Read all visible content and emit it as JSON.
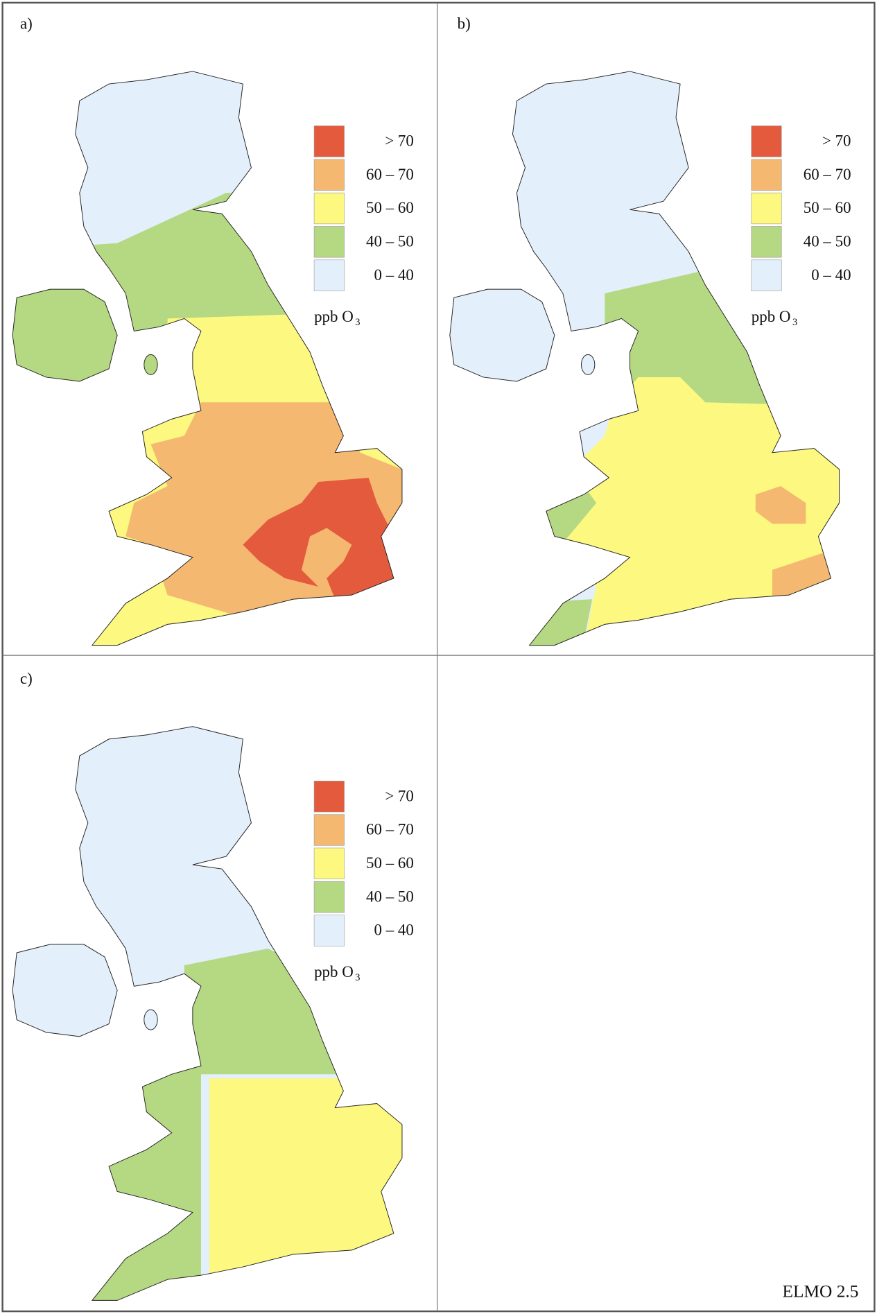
{
  "panels": [
    {
      "label": "a)"
    },
    {
      "label": "b)"
    },
    {
      "label": "c)"
    }
  ],
  "legend": {
    "classes": [
      {
        "label": "> 70",
        "color": "#e45a3d"
      },
      {
        "label": "60 – 70",
        "color": "#f5b870"
      },
      {
        "label": "50 – 60",
        "color": "#fdf880"
      },
      {
        "label": "40 – 50",
        "color": "#b5d883"
      },
      {
        "label": "0 – 40",
        "color": "#e3f0fb"
      }
    ],
    "unit": "ppb O",
    "unit_sub": "3"
  },
  "footer": "ELMO 2.5"
}
